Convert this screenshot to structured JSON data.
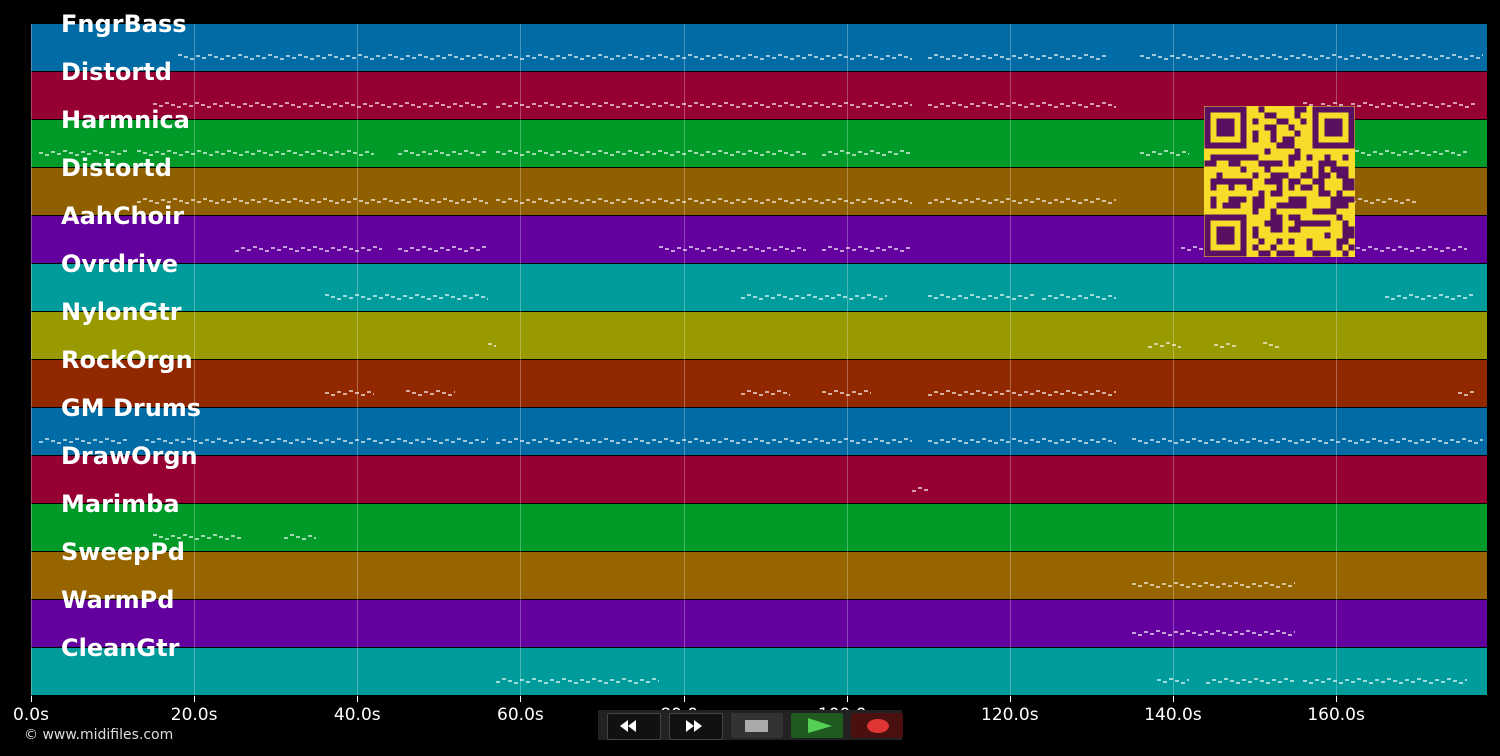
{
  "app": {
    "copyright": "© www.midifiles.com"
  },
  "tracks": [
    {
      "name": "FngrBass",
      "color": "#006ba4"
    },
    {
      "name": "Distortd",
      "color": "#960033"
    },
    {
      "name": "Harmnica",
      "color": "#009a29"
    },
    {
      "name": "Distortd",
      "color": "#8f5f00"
    },
    {
      "name": "AahChoir",
      "color": "#64009d"
    },
    {
      "name": "Ovrdrive",
      "color": "#009b9b"
    },
    {
      "name": "NylonGtr",
      "color": "#999900"
    },
    {
      "name": "RockOrgn",
      "color": "#922800"
    },
    {
      "name": "GM Drums",
      "color": "#006ba4"
    },
    {
      "name": "DrawOrgn",
      "color": "#960033"
    },
    {
      "name": "Marimba",
      "color": "#009a29"
    },
    {
      "name": "SweepPd",
      "color": "#976500"
    },
    {
      "name": "WarmPd",
      "color": "#64009d"
    },
    {
      "name": "CleanGtr",
      "color": "#009b9b"
    }
  ],
  "timeline": {
    "ticks": [
      "0.0s",
      "20.0s",
      "40.0s",
      "60.0s",
      "80.0s",
      "100.0s",
      "120.0s",
      "140.0s",
      "160.0s"
    ],
    "tick_seconds": [
      0,
      20,
      40,
      60,
      80,
      100,
      120,
      140,
      160
    ],
    "duration_seconds": 178.5
  },
  "transport": {
    "buttons": [
      {
        "name": "rewind-button",
        "icon": "rewind-icon"
      },
      {
        "name": "fast-forward-button",
        "icon": "fast-forward-icon"
      },
      {
        "name": "stop-button",
        "icon": "stop-icon"
      },
      {
        "name": "play-button",
        "icon": "play-icon"
      },
      {
        "name": "record-button",
        "icon": "record-icon"
      }
    ]
  },
  "qr": {
    "icon": "qr-code-icon",
    "color": "#f6dd2a",
    "dark": "#5a1060"
  },
  "notes": [
    {
      "track": 0,
      "segments": [
        [
          18,
          108
        ],
        [
          110,
          132
        ],
        [
          136,
          178
        ]
      ]
    },
    {
      "track": 1,
      "segments": [
        [
          15,
          56
        ],
        [
          57,
          108
        ],
        [
          110,
          133
        ],
        [
          156,
          177
        ]
      ]
    },
    {
      "track": 2,
      "segments": [
        [
          1,
          12
        ],
        [
          13,
          42
        ],
        [
          45,
          56
        ],
        [
          57,
          95
        ],
        [
          97,
          108
        ],
        [
          136,
          142
        ],
        [
          155,
          176
        ]
      ]
    },
    {
      "track": 3,
      "segments": [
        [
          13,
          56
        ],
        [
          57,
          108
        ],
        [
          110,
          133
        ],
        [
          145,
          170
        ]
      ]
    },
    {
      "track": 4,
      "segments": [
        [
          25,
          43
        ],
        [
          45,
          56
        ],
        [
          77,
          95
        ],
        [
          97,
          108
        ],
        [
          141,
          157
        ],
        [
          158,
          176
        ]
      ]
    },
    {
      "track": 5,
      "segments": [
        [
          36,
          56
        ],
        [
          87,
          105
        ],
        [
          110,
          123
        ],
        [
          124,
          133
        ],
        [
          166,
          177
        ]
      ]
    },
    {
      "track": 6,
      "segments": [
        [
          56,
          57
        ],
        [
          137,
          141
        ],
        [
          145,
          148
        ],
        [
          151,
          153
        ]
      ]
    },
    {
      "track": 7,
      "segments": [
        [
          36,
          42
        ],
        [
          46,
          52
        ],
        [
          87,
          93
        ],
        [
          97,
          103
        ],
        [
          110,
          133
        ],
        [
          175,
          177
        ]
      ]
    },
    {
      "track": 8,
      "segments": [
        [
          1,
          12
        ],
        [
          14,
          56
        ],
        [
          57,
          108
        ],
        [
          110,
          133
        ],
        [
          135,
          178
        ]
      ]
    },
    {
      "track": 9,
      "segments": [
        [
          108,
          110
        ]
      ]
    },
    {
      "track": 10,
      "segments": [
        [
          15,
          26
        ],
        [
          31,
          35
        ]
      ]
    },
    {
      "track": 11,
      "segments": [
        [
          135,
          155
        ]
      ]
    },
    {
      "track": 12,
      "segments": [
        [
          135,
          155
        ]
      ]
    },
    {
      "track": 13,
      "segments": [
        [
          57,
          77
        ],
        [
          138,
          142
        ],
        [
          144,
          155
        ],
        [
          156,
          176
        ]
      ]
    }
  ]
}
